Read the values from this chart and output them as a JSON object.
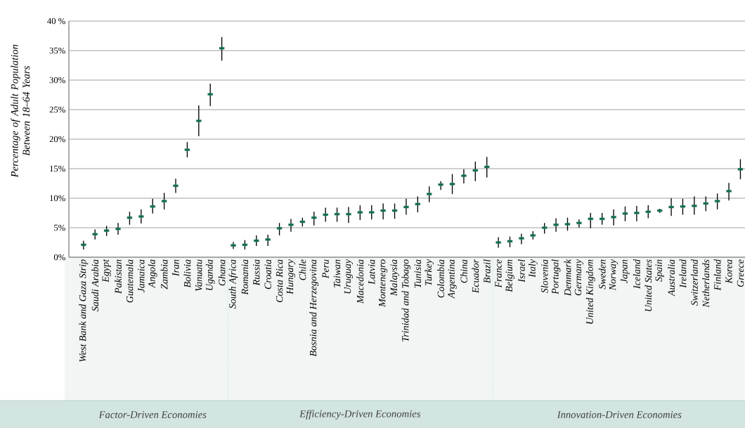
{
  "chart_data": {
    "type": "scatter",
    "ylabel": "Percentage of Adult Population Between 18–64 Years",
    "categories": [
      "West Bank and Gaza Strip",
      "Saudi Arabia",
      "Egypt",
      "Pakistan",
      "Guatemala",
      "Jamaica",
      "Angola",
      "Zambia",
      "Iran",
      "Bolivia",
      "Vanuatu",
      "Uganda",
      "Ghana",
      "South Africa",
      "Romania",
      "Russia",
      "Croatia",
      "Costa Rica",
      "Hungary",
      "Chile",
      "Bosnia and Herzegovina",
      "Peru",
      "Taiwan",
      "Uruguay",
      "Macedonia",
      "Latvia",
      "Montenegro",
      "Malaysia",
      "Trinidad and Tobago",
      "Tunisia",
      "Turkey",
      "Colombia",
      "Argentina",
      "China",
      "Ecuador",
      "Brazil",
      "France",
      "Belgium",
      "Israel",
      "Italy",
      "Slovenia",
      "Portugal",
      "Denmark",
      "Germany",
      "United Kingdom",
      "Sweden",
      "Norway",
      "Japan",
      "Iceland",
      "United States",
      "Spain",
      "Australia",
      "Ireland",
      "Switzerland",
      "Netherlands",
      "Finland",
      "Korea",
      "Greece"
    ],
    "series": [
      {
        "color": "#0b6a4f",
        "values": [
          2.1,
          3.9,
          4.5,
          4.8,
          6.7,
          6.9,
          8.6,
          9.5,
          12.1,
          18.2,
          23.1,
          27.6,
          35.4,
          null,
          null,
          null,
          null,
          null,
          null,
          null,
          null,
          null,
          null,
          null,
          null,
          null,
          null,
          null,
          null,
          null,
          null,
          null,
          null,
          null,
          null,
          null,
          null,
          null,
          null,
          null,
          null,
          null,
          null,
          null,
          null,
          null,
          null,
          null,
          null,
          null,
          null,
          null,
          null,
          null,
          null,
          null,
          null,
          null
        ],
        "errors": [
          [
            1.3,
            2.8
          ],
          [
            3.0,
            4.7
          ],
          [
            3.6,
            5.3
          ],
          [
            3.8,
            5.8
          ],
          [
            5.5,
            7.7
          ],
          [
            5.7,
            8.1
          ],
          [
            7.4,
            9.9
          ],
          [
            8.1,
            10.9
          ],
          [
            10.9,
            13.3
          ],
          [
            16.9,
            19.5
          ],
          [
            20.5,
            25.7
          ],
          [
            25.6,
            29.4
          ],
          [
            33.3,
            37.3
          ],
          null,
          null,
          null,
          null,
          null,
          null,
          null,
          null,
          null,
          null,
          null,
          null,
          null,
          null,
          null,
          null,
          null,
          null,
          null,
          null,
          null,
          null,
          null,
          null,
          null,
          null,
          null,
          null,
          null,
          null,
          null,
          null,
          null,
          null,
          null,
          null,
          null,
          null,
          null,
          null,
          null,
          null,
          null,
          null,
          null
        ]
      },
      {
        "color": "#0b6a4f",
        "values": [
          null,
          null,
          null,
          null,
          null,
          null,
          null,
          null,
          null,
          null,
          null,
          null,
          null,
          2.0,
          2.1,
          2.8,
          3.0,
          4.9,
          5.5,
          6.0,
          6.7,
          7.2,
          7.3,
          7.3,
          7.6,
          7.6,
          7.9,
          7.9,
          8.5,
          9.0,
          10.7,
          12.3,
          12.4,
          13.8,
          14.7,
          15.3,
          null,
          null,
          null,
          null,
          null,
          null,
          null,
          null,
          null,
          null,
          null,
          null,
          null,
          null,
          null,
          null,
          null,
          null,
          null,
          null,
          null,
          null
        ],
        "errors": [
          null,
          null,
          null,
          null,
          null,
          null,
          null,
          null,
          null,
          null,
          null,
          null,
          null,
          [
            1.4,
            2.6
          ],
          [
            1.3,
            2.9
          ],
          [
            1.9,
            3.7
          ],
          [
            1.9,
            3.8
          ],
          [
            3.7,
            5.8
          ],
          [
            4.3,
            6.5
          ],
          [
            5.2,
            6.7
          ],
          [
            5.4,
            7.7
          ],
          [
            6.0,
            8.4
          ],
          [
            6.0,
            8.4
          ],
          [
            5.8,
            8.5
          ],
          [
            6.3,
            8.8
          ],
          [
            6.4,
            8.8
          ],
          [
            6.4,
            9.1
          ],
          [
            6.5,
            9.1
          ],
          [
            7.2,
            9.9
          ],
          [
            7.6,
            10.3
          ],
          [
            9.3,
            12.0
          ],
          [
            11.4,
            12.9
          ],
          [
            10.7,
            14.1
          ],
          [
            12.5,
            14.9
          ],
          [
            12.9,
            16.2
          ],
          [
            13.5,
            17.0
          ],
          null,
          null,
          null,
          null,
          null,
          null,
          null,
          null,
          null,
          null,
          null,
          null,
          null,
          null,
          null,
          null,
          null,
          null,
          null,
          null,
          null,
          null
        ]
      },
      {
        "color": "#0b6a4f",
        "values": [
          null,
          null,
          null,
          null,
          null,
          null,
          null,
          null,
          null,
          null,
          null,
          null,
          null,
          null,
          null,
          null,
          null,
          null,
          null,
          null,
          null,
          null,
          null,
          null,
          null,
          null,
          null,
          null,
          null,
          null,
          null,
          null,
          null,
          null,
          null,
          null,
          2.5,
          2.7,
          3.2,
          3.7,
          5.0,
          5.5,
          5.6,
          5.8,
          6.5,
          6.5,
          6.8,
          7.4,
          7.5,
          7.7,
          7.9,
          8.5,
          8.6,
          8.7,
          9.1,
          9.5,
          11.2,
          14.9
        ],
        "errors": [
          null,
          null,
          null,
          null,
          null,
          null,
          null,
          null,
          null,
          null,
          null,
          null,
          null,
          null,
          null,
          null,
          null,
          null,
          null,
          null,
          null,
          null,
          null,
          null,
          null,
          null,
          null,
          null,
          null,
          null,
          null,
          null,
          null,
          null,
          null,
          null,
          [
            1.6,
            3.4
          ],
          [
            1.7,
            3.5
          ],
          [
            2.2,
            4.0
          ],
          [
            3.0,
            4.4
          ],
          [
            4.0,
            5.8
          ],
          [
            4.3,
            6.6
          ],
          [
            4.5,
            6.7
          ],
          [
            5.0,
            6.4
          ],
          [
            4.9,
            7.5
          ],
          [
            5.5,
            7.5
          ],
          [
            5.4,
            8.1
          ],
          [
            6.1,
            8.6
          ],
          [
            6.1,
            8.7
          ],
          [
            6.6,
            8.8
          ],
          [
            7.5,
            8.2
          ],
          [
            7.0,
            10.0
          ],
          [
            7.2,
            9.9
          ],
          [
            7.2,
            10.3
          ],
          [
            7.8,
            10.3
          ],
          [
            8.1,
            10.8
          ],
          [
            9.6,
            12.6
          ],
          [
            13.2,
            16.6
          ]
        ]
      }
    ],
    "annotations": [
      "Factor-Driven Economies",
      "Efficiency-Driven Economies",
      "Innovation-Driven Economies"
    ],
    "ylim": [
      0,
      40
    ],
    "yticks": [
      {
        "value": 0,
        "label": "0%"
      },
      {
        "value": 5,
        "label": "5%"
      },
      {
        "value": 10,
        "label": "10%"
      },
      {
        "value": 15,
        "label": "15%"
      },
      {
        "value": 20,
        "label": "20%"
      },
      {
        "value": 25,
        "label": "25%"
      },
      {
        "value": 30,
        "label": "30%"
      },
      {
        "value": 35,
        "label": "35%"
      },
      {
        "value": 40,
        "label": "40 %"
      }
    ],
    "grid": "y",
    "marker": "square"
  }
}
